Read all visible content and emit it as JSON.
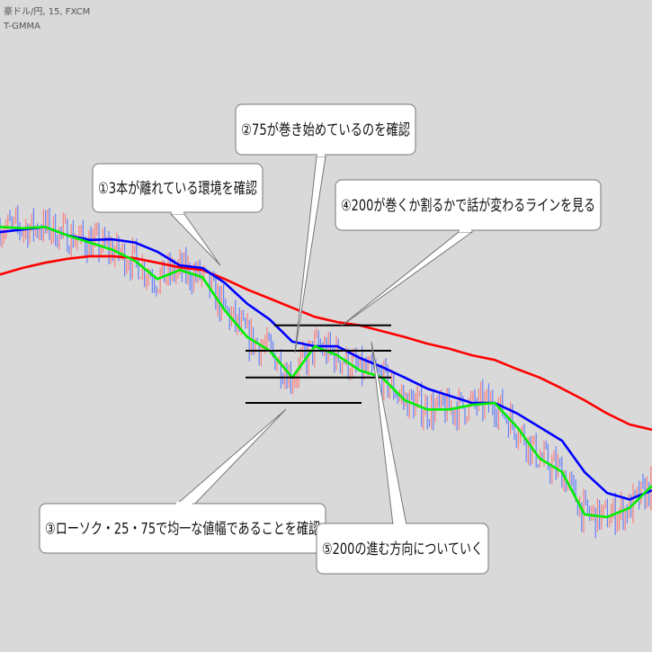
{
  "header": {
    "symbol": "豪ドル/円, 15, FXCM",
    "indicator": "T-GMMA"
  },
  "chart_data": {
    "type": "line",
    "title": "",
    "xlabel": "",
    "ylabel": "",
    "grid": false,
    "ylim": [
      0,
      100
    ],
    "series": [
      {
        "color": "#ff0000",
        "values": [
          57.9,
          58.9,
          59.7,
          60.3,
          60.7,
          60.7,
          60.4,
          59.7,
          59.0,
          58.6,
          57.2,
          55.6,
          54.2,
          52.8,
          51.4,
          50.6,
          50.1,
          49.2,
          48.3,
          47.3,
          46.5,
          45.5,
          44.8,
          43.4,
          42.1,
          40.4,
          38.6,
          36.6,
          34.9,
          34.1
        ]
      },
      {
        "color": "#0000ff",
        "values": [
          64.4,
          64.8,
          65.2,
          63.9,
          63.2,
          63.3,
          62.8,
          61.4,
          59.3,
          58.9,
          56.6,
          53.4,
          51.0,
          47.6,
          46.9,
          46.9,
          45.1,
          43.7,
          42.1,
          40.4,
          39.3,
          38.2,
          38.2,
          36.6,
          34.5,
          32.4,
          27.6,
          24.4,
          23.4,
          24.8
        ]
      },
      {
        "color": "#00ee00",
        "values": [
          65.2,
          65.0,
          65.2,
          63.9,
          62.8,
          61.7,
          60.0,
          57.2,
          58.6,
          57.5,
          52.4,
          48.3,
          46.2,
          42.1,
          46.9,
          45.5,
          43.2,
          42.1,
          38.6,
          37.2,
          37.2,
          37.9,
          38.2,
          34.5,
          29.7,
          27.6,
          21.1,
          20.7,
          22.1,
          25.5
        ]
      }
    ],
    "horizontal_levels": [
      50.1,
      46.2,
      42.1,
      38.2
    ],
    "candle_colors": {
      "up": "#ff6a6a",
      "down": "#4a6cff"
    },
    "annotations": [
      "①3本が離れている環境を確認",
      "②75が巻き始めているのを確認",
      "③ローソク・25・75で均一な値幅であることを確認",
      "④200が巻くか割るかで話が変わるラインを見る",
      "⑤200の進む方向についていく"
    ]
  }
}
